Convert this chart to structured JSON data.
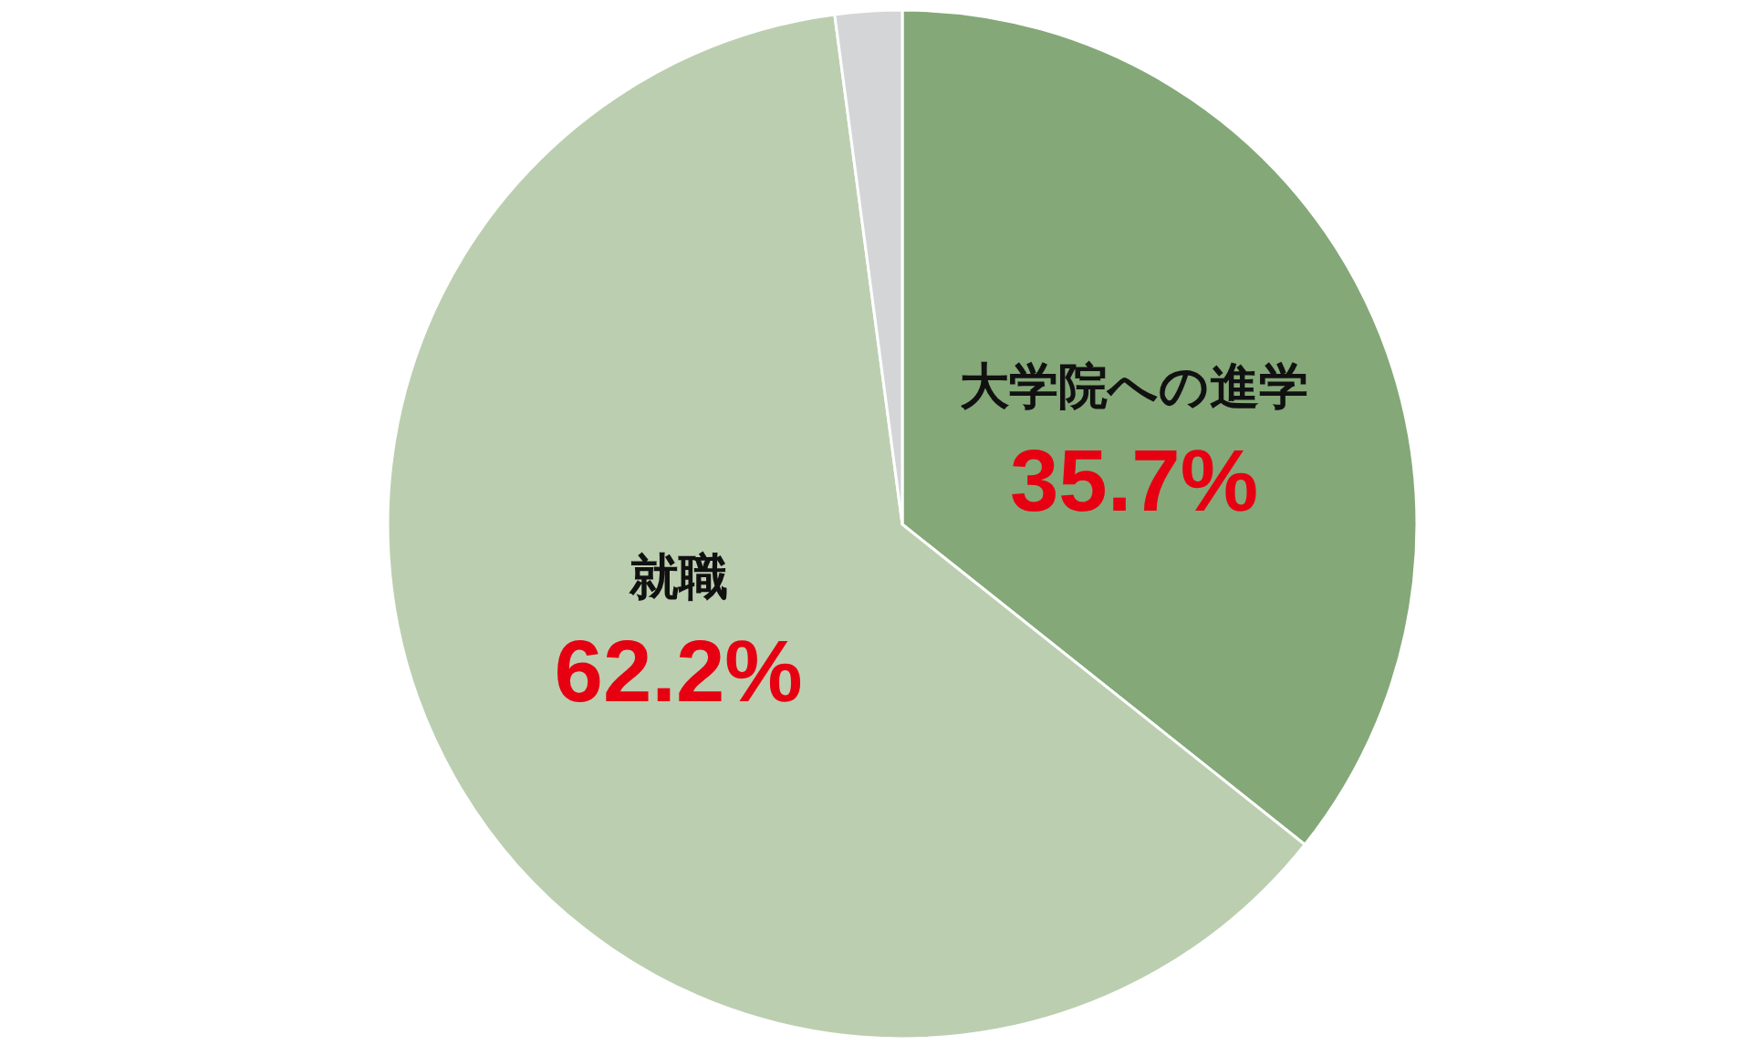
{
  "chart_data": {
    "type": "pie",
    "categories": [
      "大学院への進学",
      "就職",
      null
    ],
    "values": [
      35.7,
      62.2,
      2.1
    ],
    "colors": [
      "#84a878",
      "#bbcfb0",
      "#d4d5d6"
    ],
    "value_labels": [
      "35.7%",
      "62.2%",
      null
    ]
  }
}
